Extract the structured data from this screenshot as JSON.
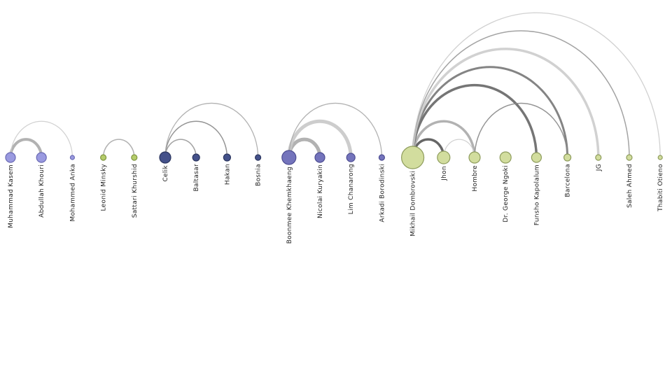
{
  "nodes": [
    {
      "label": "Muhammad Kasem"
    },
    {
      "label": "Abdullah Khouri"
    },
    {
      "label": "Mohammed Anka"
    },
    {
      "label": "Leonid Minsky"
    },
    {
      "label": "Sattari Khurshid"
    },
    {
      "label": "Celik"
    },
    {
      "label": "Baltasar"
    },
    {
      "label": "Hakan"
    },
    {
      "label": "Bosnia"
    },
    {
      "label": "Boonmee Khemkhaeng"
    },
    {
      "label": "Nicolai Kuryakin"
    },
    {
      "label": "Lim Chanarong"
    },
    {
      "label": "Arkadi Borodinski"
    },
    {
      "label": "Mikhail Dombrovski"
    },
    {
      "label": "Jhon"
    },
    {
      "label": "Hombre"
    },
    {
      "label": "Dr. George Ngoki"
    },
    {
      "label": "Funsho Kapolalum"
    },
    {
      "label": "Barcelona"
    },
    {
      "label": "JG"
    },
    {
      "label": "Saleh Ahmed"
    },
    {
      "label": "Thabiti Otieno"
    }
  ]
}
